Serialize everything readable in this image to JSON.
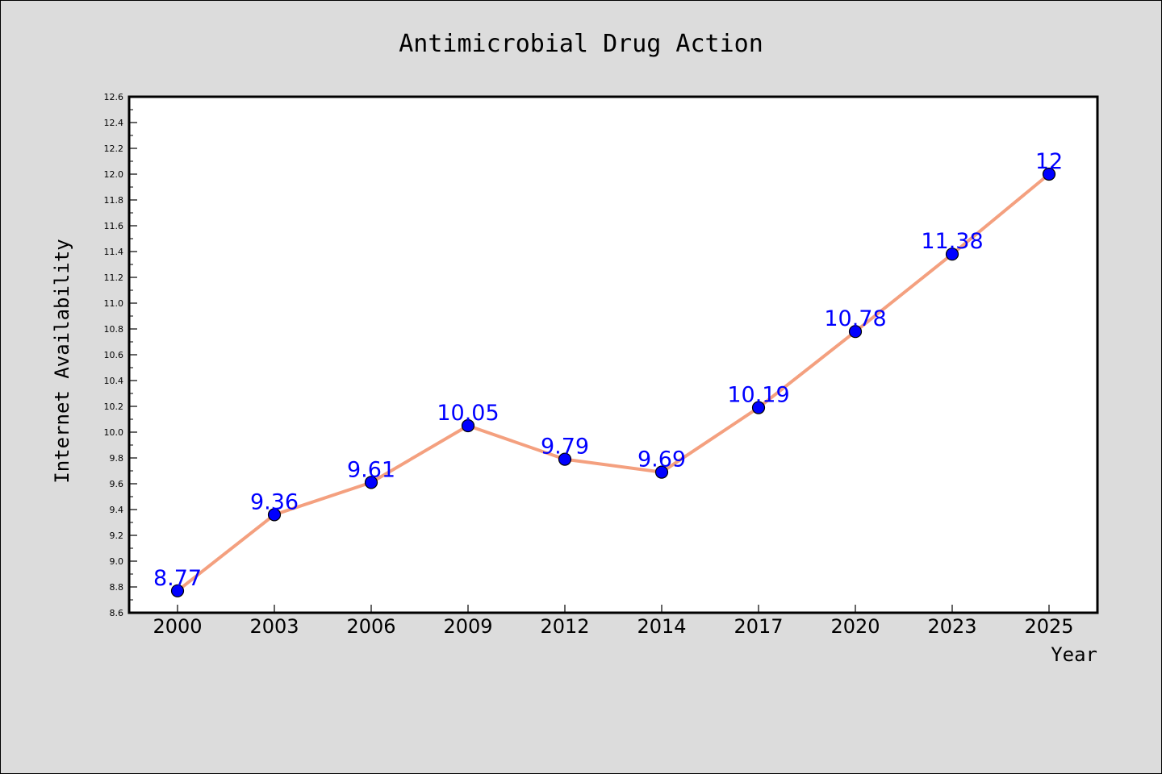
{
  "chart_data": {
    "type": "line",
    "title": "Antimicrobial Drug Action",
    "xlabel": "Year",
    "ylabel": "Internet Availability",
    "categories": [
      "2000",
      "2003",
      "2006",
      "2009",
      "2012",
      "2014",
      "2017",
      "2020",
      "2023",
      "2025"
    ],
    "series": [
      {
        "values": [
          8.77,
          9.36,
          9.61,
          10.05,
          9.79,
          9.69,
          10.19,
          10.78,
          11.38,
          12
        ]
      }
    ],
    "data_labels": [
      "8.77",
      "9.36",
      "9.61",
      "10.05",
      "9.79",
      "9.69",
      "10.19",
      "10.78",
      "11.38",
      "12"
    ],
    "ylim": [
      8.6,
      12.6
    ],
    "yticks": [
      "8.6",
      "8.8",
      "9.0",
      "9.2",
      "9.4",
      "9.6",
      "9.8",
      "10.0",
      "10.2",
      "10.4",
      "10.6",
      "10.8",
      "11.0",
      "11.2",
      "11.4",
      "11.6",
      "11.8",
      "12.0",
      "12.2",
      "12.4",
      "12.6"
    ],
    "grid": false,
    "colors": {
      "line": "#f4a07f",
      "marker": "#0000ff",
      "label": "#0000ff",
      "background": "#dcdcdc",
      "plot_background": "#ffffff"
    }
  }
}
